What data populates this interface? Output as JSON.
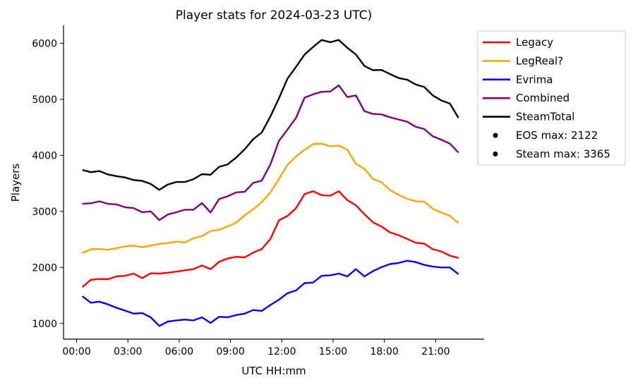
{
  "chart_data": {
    "type": "line",
    "title": "Player stats for 2024-03-23 UTC)",
    "xlabel": "UTC HH:mm",
    "ylabel": "Players",
    "x_ticks": [
      "00:00",
      "03:00",
      "06:00",
      "09:00",
      "12:00",
      "15:00",
      "18:00",
      "21:00"
    ],
    "y_ticks": [
      1000,
      2000,
      3000,
      4000,
      5000,
      6000
    ],
    "xlim": [
      "2024-03-22 23:14",
      "2024-03-23 23:50"
    ],
    "ylim": [
      720,
      6320
    ],
    "legend_position": "upper right outside",
    "x": [
      "00:20",
      "00:50",
      "01:20",
      "01:50",
      "02:20",
      "02:50",
      "03:20",
      "03:50",
      "04:20",
      "04:50",
      "05:20",
      "05:50",
      "06:20",
      "06:50",
      "07:20",
      "07:50",
      "08:20",
      "08:50",
      "09:20",
      "09:50",
      "10:20",
      "10:50",
      "11:20",
      "11:50",
      "12:20",
      "12:50",
      "13:20",
      "13:50",
      "14:20",
      "14:50",
      "15:20",
      "15:50",
      "16:20",
      "16:50",
      "17:20",
      "17:50",
      "18:20",
      "18:50",
      "19:20",
      "19:50",
      "20:20",
      "20:50",
      "21:20",
      "21:50",
      "22:20",
      "22:50"
    ],
    "series": [
      {
        "name": "Legacy",
        "color": "#ff0000",
        "values": [
          1650,
          1780,
          1795,
          1790,
          1840,
          1850,
          1890,
          1810,
          1895,
          1890,
          1905,
          1925,
          1950,
          1970,
          2035,
          1970,
          2100,
          2160,
          2190,
          2180,
          2265,
          2330,
          2510,
          2840,
          2920,
          3060,
          3310,
          3360,
          3290,
          3280,
          3360,
          3200,
          3110,
          2950,
          2805,
          2730,
          2625,
          2575,
          2510,
          2440,
          2425,
          2325,
          2285,
          2210,
          2170,
          null
        ]
      },
      {
        "name": "LegReal?",
        "color": "#ffa500",
        "values": [
          2255,
          2325,
          2330,
          2315,
          2345,
          2375,
          2390,
          2360,
          2390,
          2420,
          2435,
          2460,
          2445,
          2520,
          2560,
          2650,
          2670,
          2730,
          2800,
          2930,
          3040,
          3165,
          3340,
          3580,
          3830,
          3980,
          4100,
          4200,
          4210,
          4160,
          4175,
          4100,
          3850,
          3760,
          3580,
          3520,
          3380,
          3295,
          3225,
          3180,
          3175,
          3045,
          2980,
          2920,
          2790,
          null
        ]
      },
      {
        "name": "Evrima",
        "color": "#0000ff",
        "values": [
          1485,
          1370,
          1390,
          1340,
          1280,
          1230,
          1175,
          1185,
          1110,
          955,
          1035,
          1055,
          1070,
          1055,
          1110,
          1010,
          1120,
          1110,
          1150,
          1175,
          1240,
          1225,
          1330,
          1425,
          1540,
          1590,
          1720,
          1730,
          1850,
          1860,
          1890,
          1840,
          1970,
          1840,
          1935,
          2005,
          2060,
          2080,
          2120,
          2095,
          2045,
          2015,
          2000,
          2000,
          1880,
          null
        ]
      },
      {
        "name": "Combined",
        "color": "#800080",
        "values": [
          3135,
          3145,
          3180,
          3135,
          3125,
          3075,
          3060,
          2985,
          3000,
          2845,
          2945,
          2985,
          3030,
          3030,
          3150,
          2980,
          3220,
          3270,
          3340,
          3350,
          3510,
          3550,
          3840,
          4260,
          4460,
          4670,
          5030,
          5090,
          5135,
          5140,
          5250,
          5040,
          5070,
          4790,
          4740,
          4730,
          4680,
          4640,
          4600,
          4510,
          4470,
          4340,
          4280,
          4210,
          4050,
          null
        ]
      },
      {
        "name": "SteamTotal",
        "color": "#000000",
        "values": [
          3740,
          3700,
          3720,
          3660,
          3630,
          3605,
          3560,
          3545,
          3490,
          3385,
          3480,
          3525,
          3525,
          3575,
          3665,
          3655,
          3795,
          3840,
          3960,
          4110,
          4290,
          4410,
          4695,
          5020,
          5370,
          5580,
          5800,
          5935,
          6060,
          6020,
          6060,
          5920,
          5800,
          5595,
          5520,
          5525,
          5450,
          5380,
          5350,
          5265,
          5220,
          5070,
          4980,
          4925,
          4670,
          null
        ]
      }
    ],
    "legend_extra": [
      "EOS max: 2122",
      "Steam max: 3365"
    ]
  }
}
